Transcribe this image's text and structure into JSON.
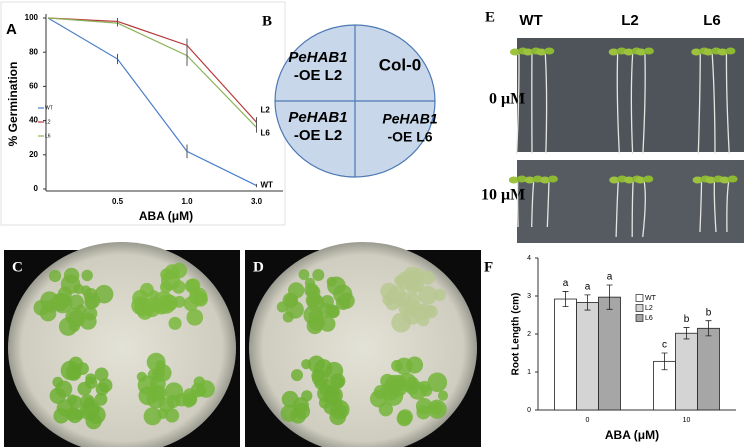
{
  "chart_data": [
    {
      "type": "line",
      "label": "A",
      "y_label": "% Germination",
      "x_label": "ABA (μM)",
      "categories": [
        null,
        "0.5",
        "1.0",
        "3.0"
      ],
      "series": [
        {
          "name": "WT",
          "color": "#4a7ec9",
          "values": [
            100,
            76,
            22,
            2
          ],
          "errors": [
            0,
            3,
            4,
            1
          ]
        },
        {
          "name": "L2",
          "color": "#b4393c",
          "values": [
            100,
            98,
            84,
            39
          ],
          "errors": [
            0,
            2,
            4,
            3
          ]
        },
        {
          "name": "L6",
          "color": "#8db35a",
          "values": [
            100,
            97,
            78,
            36
          ],
          "errors": [
            0,
            2,
            6,
            3
          ]
        }
      ],
      "ylim": [
        0,
        100
      ],
      "yticks": [
        0,
        20,
        40,
        60,
        80,
        100
      ],
      "legend": "left"
    },
    {
      "type": "bar",
      "label": "F",
      "y_label": "Root Length (cm)",
      "x_label": "ABA (μM)",
      "categories": [
        "0",
        "10"
      ],
      "series": [
        {
          "name": "WT",
          "color": "#ffffff",
          "values": [
            2.92,
            1.28
          ],
          "errors": [
            0.2,
            0.22
          ],
          "letters": [
            "a",
            "c"
          ]
        },
        {
          "name": "L2",
          "color": "#d4d4d4",
          "values": [
            2.83,
            2.02
          ],
          "errors": [
            0.2,
            0.15
          ],
          "letters": [
            "a",
            "b"
          ]
        },
        {
          "name": "L6",
          "color": "#a6a6a6",
          "values": [
            2.97,
            2.15
          ],
          "errors": [
            0.32,
            0.2
          ],
          "letters": [
            "a",
            "b"
          ]
        }
      ],
      "ylim": [
        0,
        4
      ],
      "yticks": [
        0,
        1,
        2,
        3,
        4
      ],
      "legend": "right"
    }
  ],
  "panel_b": {
    "label": "B",
    "quadrants": [
      {
        "gene": "PeHAB1",
        "line": "-OE  L2"
      },
      {
        "line": "Col-0"
      },
      {
        "gene": "PeHAB1",
        "line": "-OE L2"
      },
      {
        "gene": "PeHAB1",
        "line": "-OE L6"
      }
    ]
  },
  "panel_c": {
    "label": "C"
  },
  "panel_d": {
    "label": "D"
  },
  "panel_e": {
    "label": "E",
    "columns": [
      "WT",
      "L2",
      "L6"
    ],
    "rows": [
      "0 μM",
      "10 μM"
    ]
  }
}
